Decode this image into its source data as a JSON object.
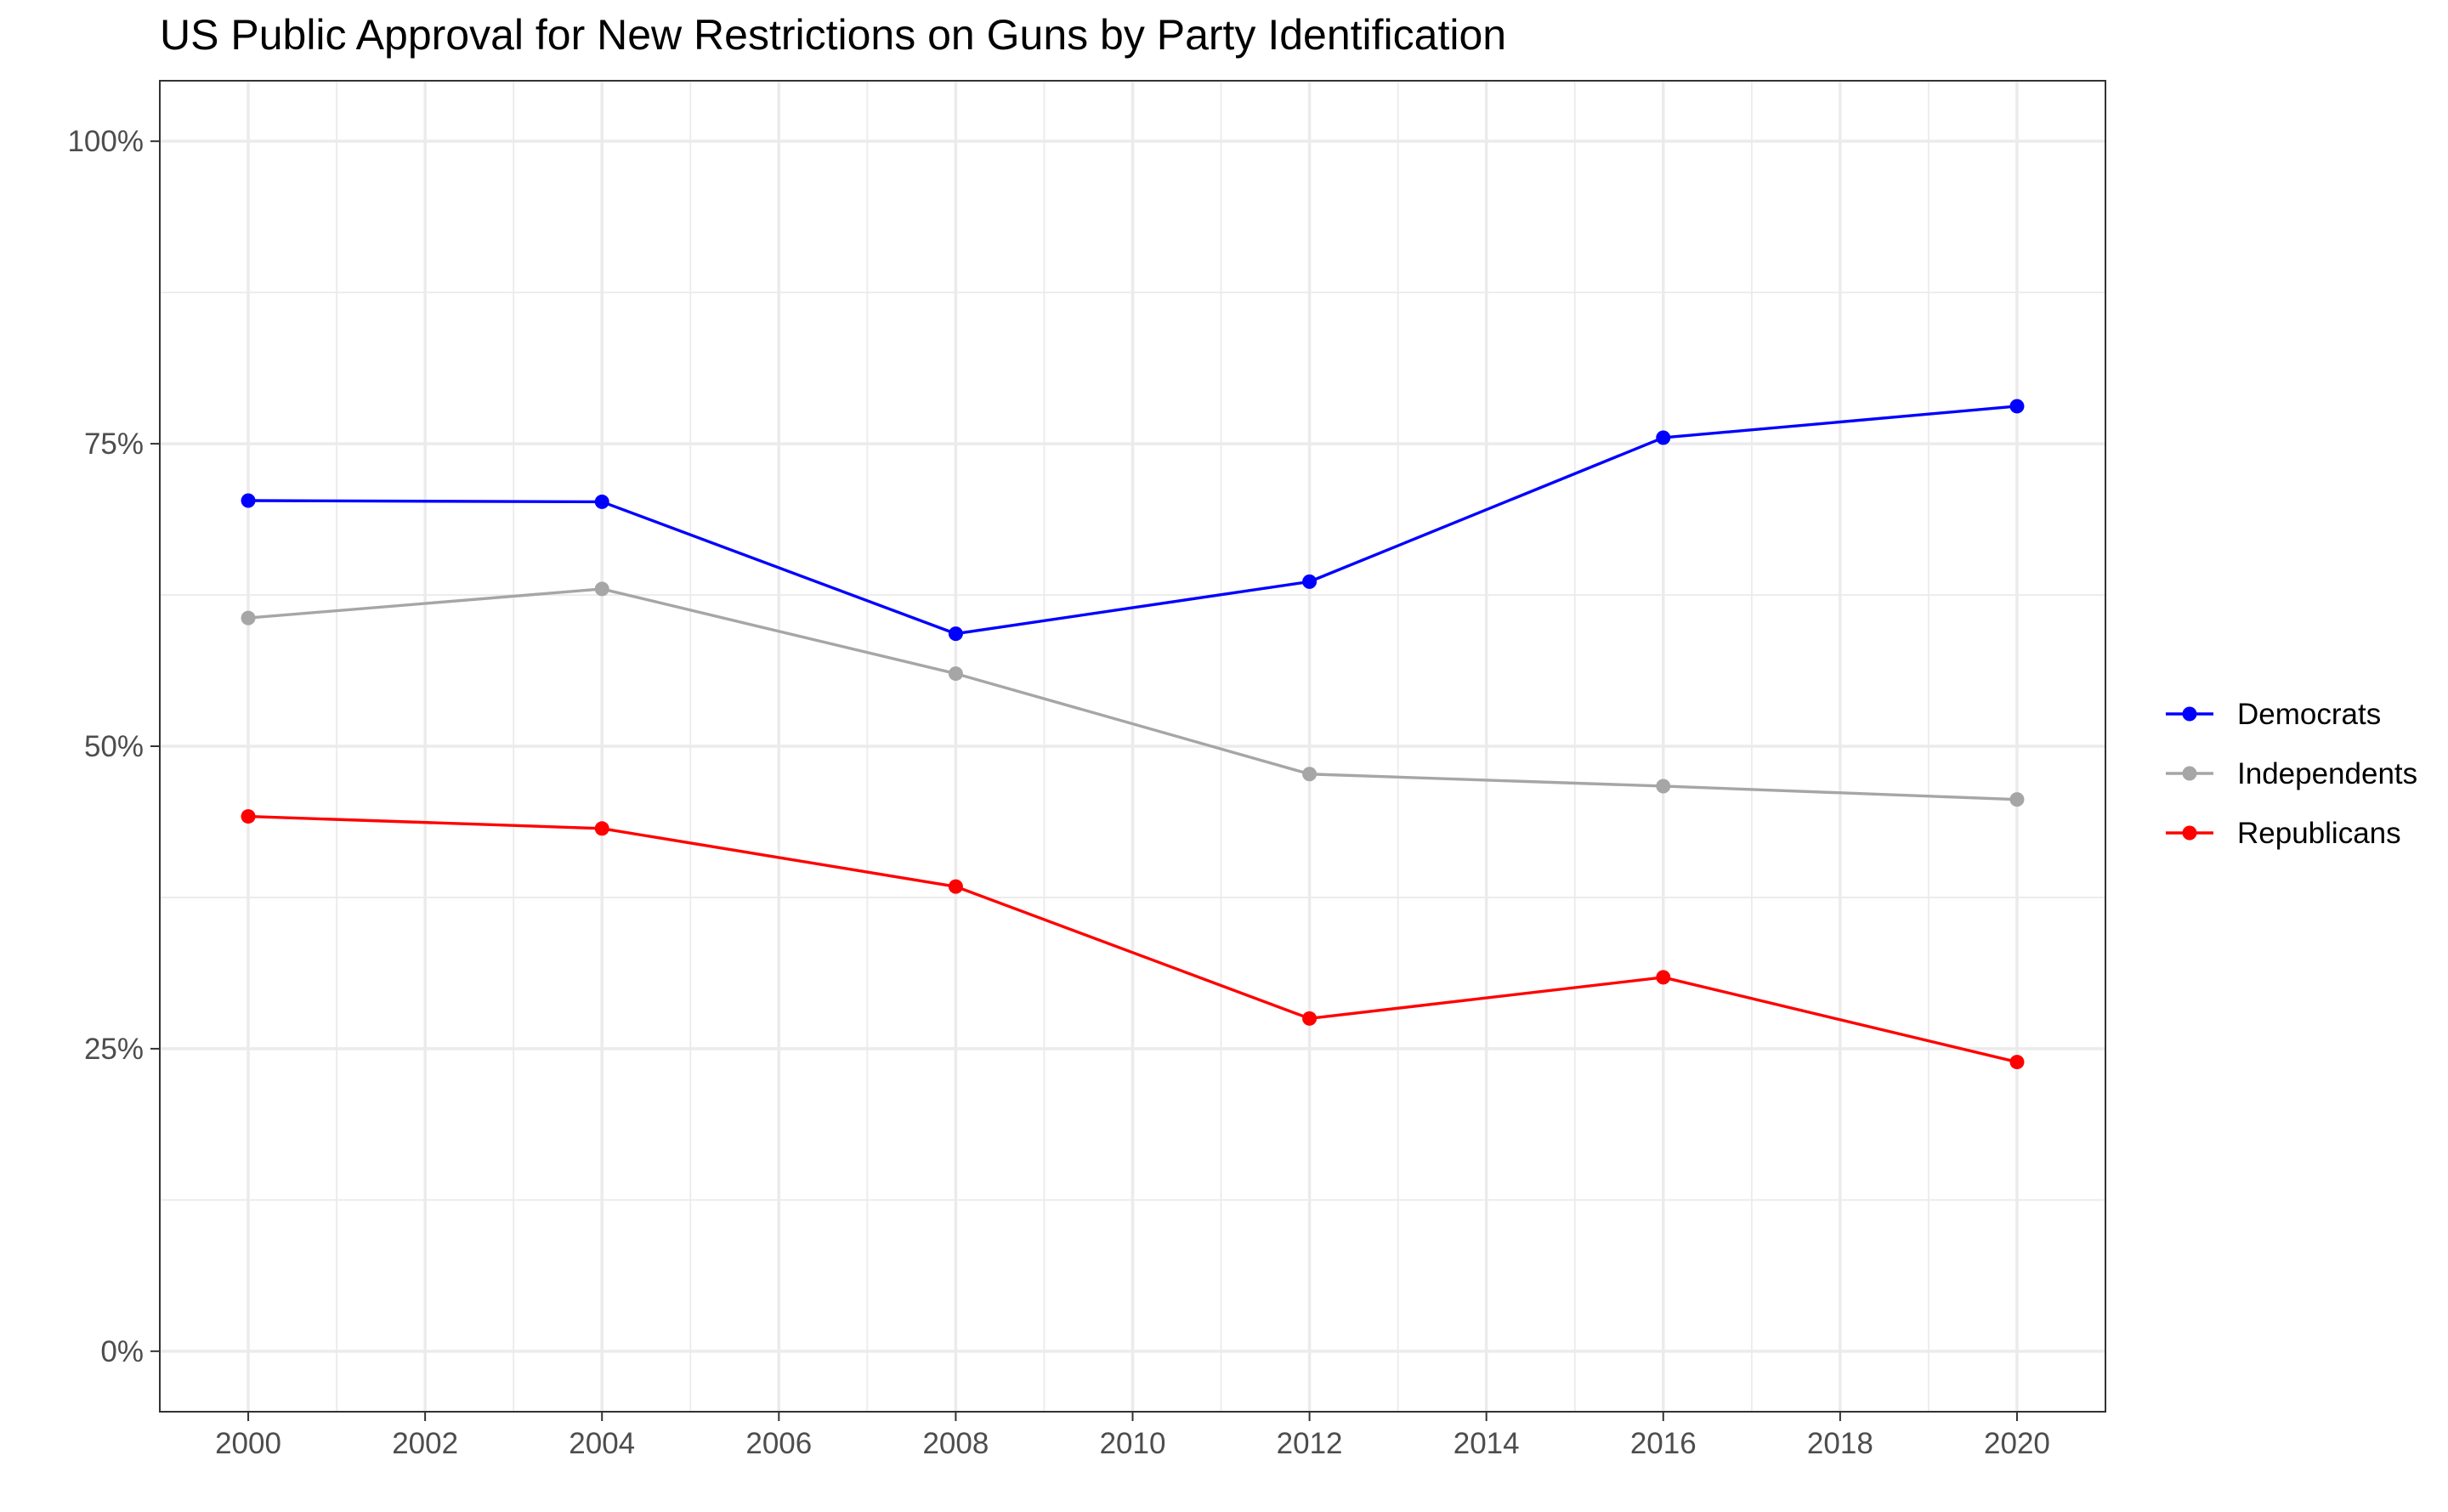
{
  "chart_data": {
    "type": "line",
    "title": "US Public Approval for New Restrictions on Guns by Party Identification",
    "xlabel": "",
    "ylabel": "",
    "x": [
      2000,
      2004,
      2008,
      2012,
      2016,
      2020
    ],
    "x_ticks": [
      "2000",
      "2002",
      "2004",
      "2006",
      "2008",
      "2010",
      "2012",
      "2014",
      "2016",
      "2018",
      "2020"
    ],
    "y_ticks": [
      "0%",
      "25%",
      "50%",
      "75%",
      "100%"
    ],
    "xlim": [
      1999,
      2021
    ],
    "ylim": [
      -5,
      105
    ],
    "grid": true,
    "legend_position": "right",
    "series": [
      {
        "name": "Democrats",
        "color": "#0000ff",
        "values": [
          70.3,
          70.2,
          59.3,
          63.6,
          75.5,
          78.1
        ]
      },
      {
        "name": "Independents",
        "color": "#a6a6a6",
        "values": [
          60.6,
          63.0,
          56.0,
          47.7,
          46.7,
          45.6
        ]
      },
      {
        "name": "Republicans",
        "color": "#ff0000",
        "values": [
          44.2,
          43.2,
          38.4,
          27.5,
          30.9,
          23.9
        ]
      }
    ]
  }
}
